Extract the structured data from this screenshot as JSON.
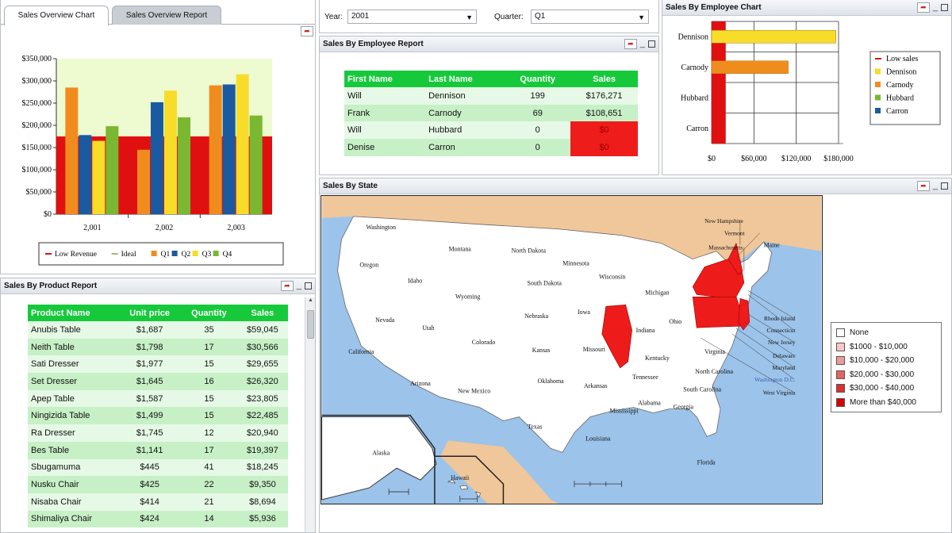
{
  "tabs": {
    "overview_chart": "Sales Overview Chart",
    "overview_report": "Sales Overview Report"
  },
  "filters": {
    "year_label": "Year:",
    "year_value": "2001",
    "quarter_label": "Quarter:",
    "quarter_value": "Q1"
  },
  "panels": {
    "sales_by_employee_report": "Sales By Employee Report",
    "sales_by_employee_chart": "Sales By Employee Chart",
    "sales_by_state": "Sales By State",
    "sales_by_product_report": "Sales By Product Report"
  },
  "employee_report": {
    "columns": [
      "First Name",
      "Last Name",
      "Quantity",
      "Sales"
    ],
    "rows": [
      {
        "first": "Will",
        "last": "Dennison",
        "qty": "199",
        "sales": "$176,271"
      },
      {
        "first": "Frank",
        "last": "Carnody",
        "qty": "69",
        "sales": "$108,651"
      },
      {
        "first": "Will",
        "last": "Hubbard",
        "qty": "0",
        "sales": "$0"
      },
      {
        "first": "Denise",
        "last": "Carron",
        "qty": "0",
        "sales": "$0"
      }
    ]
  },
  "product_report": {
    "columns": [
      "Product Name",
      "Unit price",
      "Quantity",
      "Sales"
    ],
    "rows": [
      {
        "name": "Anubis Table",
        "price": "$1,687",
        "qty": "35",
        "sales": "$59,045"
      },
      {
        "name": "Neith Table",
        "price": "$1,798",
        "qty": "17",
        "sales": "$30,566"
      },
      {
        "name": "Sati Dresser",
        "price": "$1,977",
        "qty": "15",
        "sales": "$29,655"
      },
      {
        "name": "Set Dresser",
        "price": "$1,645",
        "qty": "16",
        "sales": "$26,320"
      },
      {
        "name": "Apep Table",
        "price": "$1,587",
        "qty": "15",
        "sales": "$23,805"
      },
      {
        "name": "Ningizida Table",
        "price": "$1,499",
        "qty": "15",
        "sales": "$22,485"
      },
      {
        "name": "Ra Dresser",
        "price": "$1,745",
        "qty": "12",
        "sales": "$20,940"
      },
      {
        "name": "Bes Table",
        "price": "$1,141",
        "qty": "17",
        "sales": "$19,397"
      },
      {
        "name": "Sbugamuma",
        "price": "$445",
        "qty": "41",
        "sales": "$18,245"
      },
      {
        "name": "Nusku Chair",
        "price": "$425",
        "qty": "22",
        "sales": "$9,350"
      },
      {
        "name": "Nisaba Chair",
        "price": "$414",
        "qty": "21",
        "sales": "$8,694"
      },
      {
        "name": "Shimaliya Chair",
        "price": "$424",
        "qty": "14",
        "sales": "$5,936"
      }
    ]
  },
  "map": {
    "legend": [
      "None",
      "$1000 - $10,000",
      "$10,000 - $20,000",
      "$20,000 - $30,000",
      "$30,000 - $40,000",
      "More than $40,000"
    ],
    "legend_colors": [
      "#ffffff",
      "#f7c7c7",
      "#ee9a9a",
      "#e56262",
      "#d93030",
      "#d80000"
    ],
    "states": [
      "Washington",
      "Oregon",
      "California",
      "Idaho",
      "Nevada",
      "Montana",
      "Wyoming",
      "Utah",
      "Arizona",
      "Colorado",
      "New Mexico",
      "North Dakota",
      "South Dakota",
      "Nebraska",
      "Kansas",
      "Oklahoma",
      "Texas",
      "Minnesota",
      "Iowa",
      "Missouri",
      "Arkansas",
      "Louisiana",
      "Wisconsin",
      "Michigan",
      "Indiana",
      "Ohio",
      "Kentucky",
      "Tennessee",
      "Mississippi",
      "Alabama",
      "Georgia",
      "Florida",
      "Virginia",
      "North Carolina",
      "South Carolina",
      "Alaska",
      "Hawaii",
      "Maine"
    ],
    "callouts": [
      "New Hampshire",
      "Vermont",
      "Massachusetts",
      "Rhode Island",
      "Connecticut",
      "New Jersey",
      "Delaware",
      "Maryland",
      "Washington D.C.",
      "West Virginia"
    ]
  },
  "chart_data": [
    {
      "type": "bar",
      "categories": [
        "2,001",
        "2,002",
        "2,003"
      ],
      "series": [
        {
          "name": "Q1",
          "values": [
            285000,
            145000,
            290000
          ],
          "color": "#f08c1e"
        },
        {
          "name": "Q2",
          "values": [
            178000,
            252000,
            292000
          ],
          "color": "#1a5aa0"
        },
        {
          "name": "Q3",
          "values": [
            165000,
            278000,
            315000
          ],
          "color": "#f7dc2a"
        },
        {
          "name": "Q4",
          "values": [
            198000,
            218000,
            222000
          ],
          "color": "#79b830"
        }
      ],
      "low_revenue": 175000,
      "ideal": 350000,
      "line_legend": [
        "Low Revenue",
        "Ideal"
      ],
      "low_revenue_color": "#e01010",
      "ideal_color": "#eefad0",
      "yticks": [
        "$0",
        "$50,000",
        "$100,000",
        "$150,000",
        "$200,000",
        "$250,000",
        "$300,000",
        "$350,000"
      ],
      "ylim": [
        0,
        350000
      ],
      "legend": "bottom"
    },
    {
      "type": "bar",
      "orientation": "horizontal",
      "categories": [
        "Dennison",
        "Carnody",
        "Hubbard",
        "Carron"
      ],
      "values": [
        176271,
        108651,
        0,
        0
      ],
      "colors": [
        "#f7dc2a",
        "#f08c1e",
        "#79b830",
        "#1a5aa0"
      ],
      "low_sales": 20000,
      "low_sales_color": "#e01010",
      "xticks": [
        "$0",
        "$60,000",
        "$120,000",
        "$180,000"
      ],
      "xlim": [
        0,
        180000
      ],
      "legend_entries": [
        "Low sales",
        "Dennison",
        "Carnody",
        "Hubbard",
        "Carron"
      ],
      "legend": "right"
    }
  ]
}
